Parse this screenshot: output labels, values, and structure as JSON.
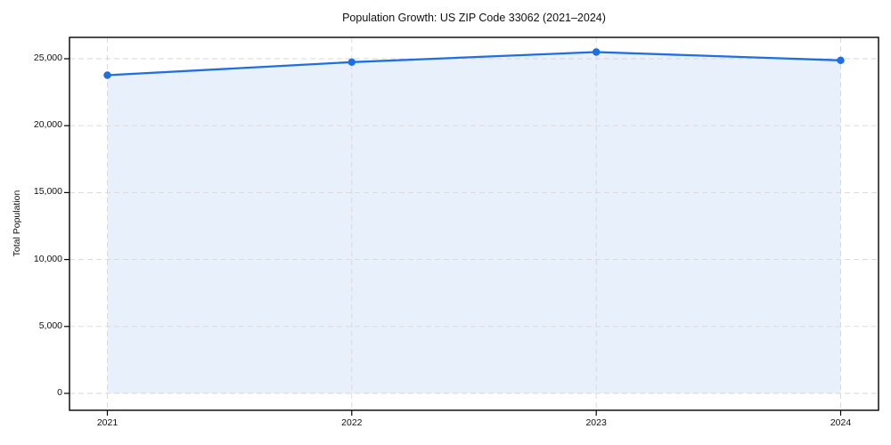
{
  "chart_data": {
    "type": "area",
    "title": "Population Growth: US ZIP Code 33062 (2021–2024)",
    "xlabel": "",
    "ylabel": "Total Population",
    "x": [
      2021,
      2022,
      2023,
      2024
    ],
    "xtick_labels": [
      "2021",
      "2022",
      "2023",
      "2024"
    ],
    "series": [
      {
        "name": "Total Population",
        "values": [
          23770,
          24750,
          25500,
          24880
        ]
      }
    ],
    "yticks": [
      0,
      5000,
      10000,
      15000,
      20000,
      25000
    ],
    "ytick_labels": [
      "0",
      "5,000",
      "10,000",
      "15,000",
      "20,000",
      "25,000"
    ],
    "ylim": [
      -1250,
      26650
    ],
    "grid": true,
    "grid_style": "dashed",
    "legend": false,
    "colors": {
      "line": "#1f6fe0",
      "marker": "#1f6fe0",
      "fill": "rgba(31,111,224,0.10)",
      "grid": "#d8d8d8",
      "spine": "#000000",
      "text": "#111111",
      "background": "#ffffff"
    }
  }
}
